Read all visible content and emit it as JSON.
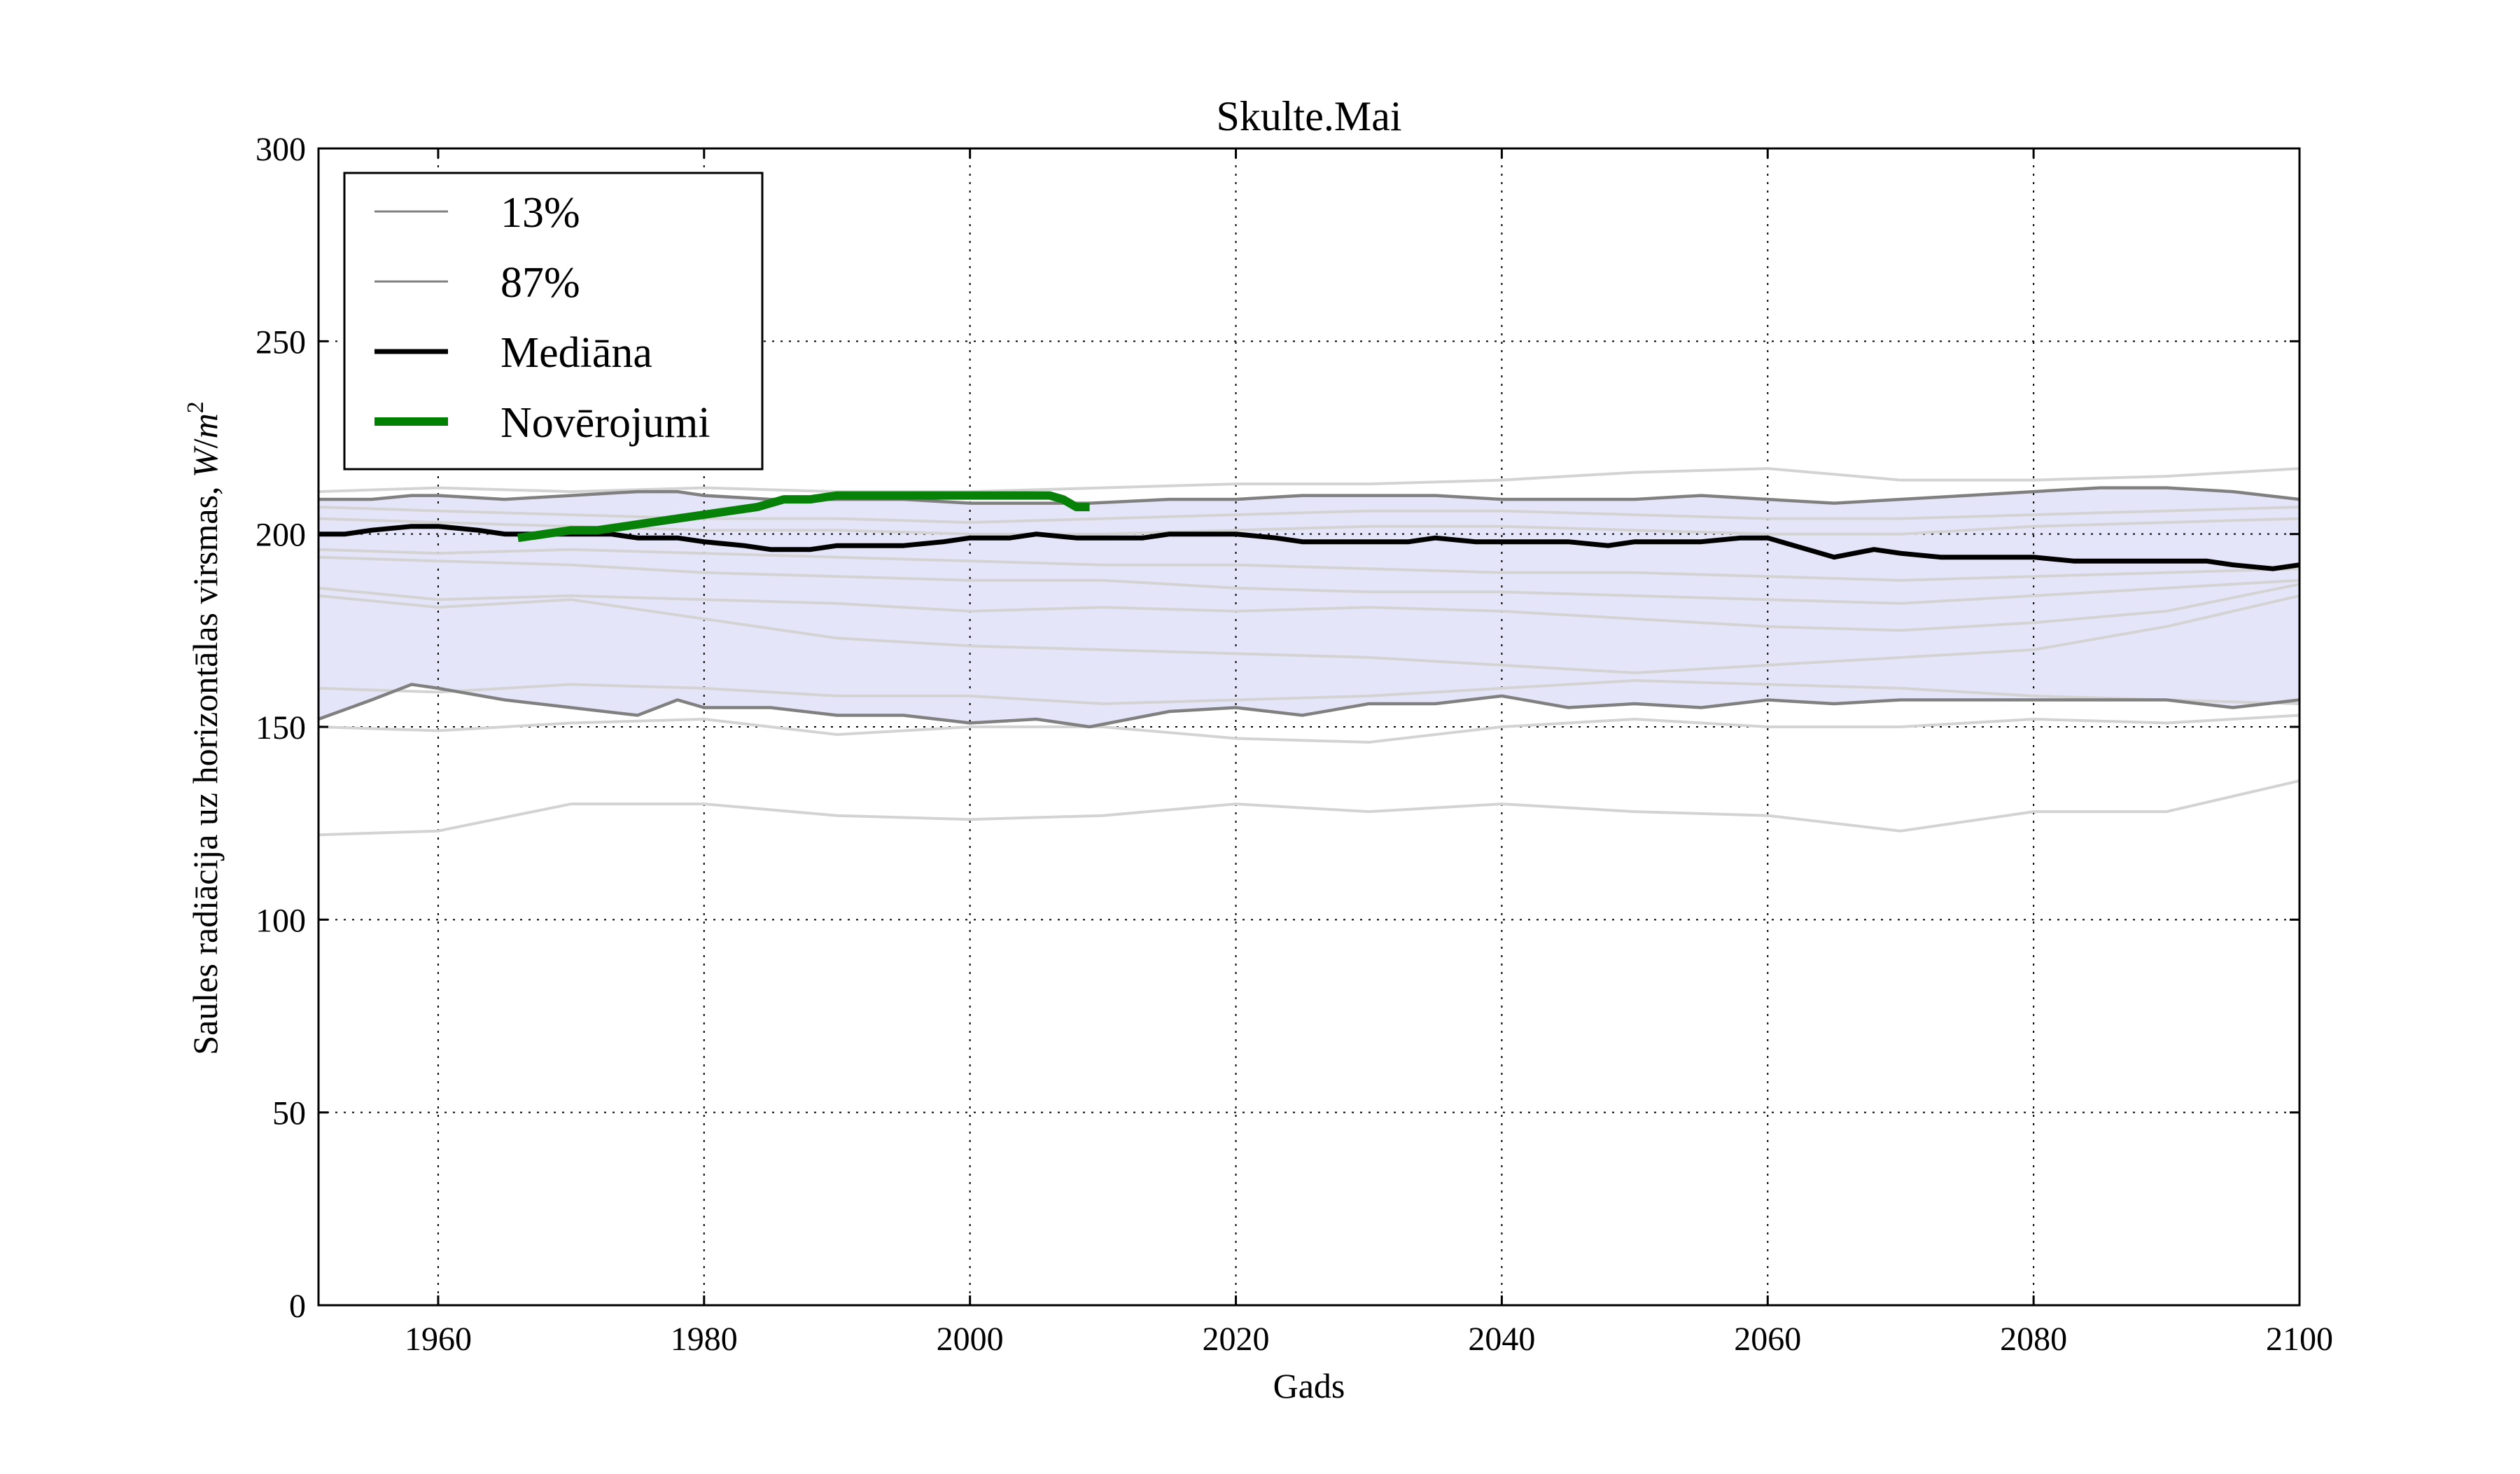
{
  "chart_data": {
    "type": "line",
    "title": "Skulte.Mai",
    "xlabel": "Gads",
    "ylabel_text": "Saules radiācija uz horizontālas virsmas, ",
    "ylabel_unit_main": "W",
    "ylabel_unit_sep": "/",
    "ylabel_unit_base": "m",
    "ylabel_unit_exp": "2",
    "xlim": [
      1951,
      2100
    ],
    "ylim": [
      0,
      300
    ],
    "xticks": [
      1960,
      1980,
      2000,
      2020,
      2040,
      2060,
      2080,
      2100
    ],
    "yticks": [
      0,
      50,
      100,
      150,
      200,
      250,
      300
    ],
    "grid": true,
    "legend_position": "upper-left",
    "legend": [
      {
        "label": "13%",
        "color": "#808080",
        "style": "thin"
      },
      {
        "label": "87%",
        "color": "#808080",
        "style": "thin"
      },
      {
        "label": "Mediāna",
        "color": "#000000",
        "style": "medium"
      },
      {
        "label": "Novērojumi",
        "color": "#008000",
        "style": "thick"
      }
    ],
    "colors": {
      "band_fill": "#e5e5fa",
      "percentile_line": "#808080",
      "ensemble_line": "#d3d3d3",
      "median_line": "#000000",
      "observation_line": "#078107",
      "grid": "#000000"
    },
    "band": {
      "name": "13%–87%",
      "x": [
        1951,
        1955,
        1958,
        1960,
        1965,
        1970,
        1975,
        1978,
        1980,
        1985,
        1990,
        1995,
        2000,
        2005,
        2009,
        2015,
        2020,
        2025,
        2030,
        2035,
        2040,
        2045,
        2050,
        2055,
        2060,
        2065,
        2070,
        2075,
        2080,
        2085,
        2090,
        2095,
        2100
      ],
      "lower": [
        152,
        157,
        161,
        160,
        157,
        155,
        153,
        157,
        155,
        155,
        153,
        153,
        151,
        152,
        150,
        154,
        155,
        153,
        156,
        156,
        158,
        155,
        156,
        155,
        157,
        156,
        157,
        157,
        157,
        157,
        157,
        155,
        157
      ],
      "upper": [
        209,
        209,
        210,
        210,
        209,
        210,
        211,
        211,
        210,
        209,
        209,
        209,
        208,
        208,
        208,
        209,
        209,
        210,
        210,
        210,
        209,
        209,
        209,
        210,
        209,
        208,
        209,
        210,
        211,
        212,
        212,
        211,
        209
      ]
    },
    "series": [
      {
        "name": "Mediāna",
        "x": [
          1951,
          1953,
          1955,
          1958,
          1960,
          1963,
          1965,
          1968,
          1970,
          1973,
          1975,
          1978,
          1980,
          1983,
          1985,
          1988,
          1990,
          1993,
          1995,
          1998,
          2000,
          2003,
          2005,
          2008,
          2010,
          2013,
          2015,
          2018,
          2020,
          2023,
          2025,
          2028,
          2030,
          2033,
          2035,
          2038,
          2040,
          2043,
          2045,
          2048,
          2050,
          2053,
          2055,
          2058,
          2060,
          2063,
          2065,
          2068,
          2070,
          2073,
          2075,
          2078,
          2080,
          2083,
          2085,
          2088,
          2090,
          2093,
          2095,
          2098,
          2100
        ],
        "values": [
          200,
          200,
          201,
          202,
          202,
          201,
          200,
          200,
          200,
          200,
          199,
          199,
          198,
          197,
          196,
          196,
          197,
          197,
          197,
          198,
          199,
          199,
          200,
          199,
          199,
          199,
          200,
          200,
          200,
          199,
          198,
          198,
          198,
          198,
          199,
          198,
          198,
          198,
          198,
          197,
          198,
          198,
          198,
          199,
          199,
          196,
          194,
          196,
          195,
          194,
          194,
          194,
          194,
          193,
          193,
          193,
          193,
          193,
          192,
          191,
          192
        ]
      },
      {
        "name": "Novērojumi",
        "x": [
          1966,
          1968,
          1970,
          1972,
          1974,
          1976,
          1978,
          1980,
          1982,
          1984,
          1986,
          1988,
          1990,
          1992,
          1994,
          1996,
          1998,
          2000,
          2002,
          2004,
          2006,
          2007,
          2008,
          2009
        ],
        "values": [
          199,
          200,
          201,
          201,
          202,
          203,
          204,
          205,
          206,
          207,
          209,
          209,
          210,
          210,
          210,
          210,
          210,
          210,
          210,
          210,
          210,
          209,
          207,
          207
        ]
      }
    ],
    "ensemble": [
      {
        "x": [
          1951,
          1960,
          1970,
          1980,
          1990,
          2000,
          2010,
          2020,
          2030,
          2040,
          2050,
          2060,
          2070,
          2080,
          2090,
          2100
        ],
        "values": [
          122,
          123,
          130,
          130,
          127,
          126,
          127,
          130,
          128,
          130,
          128,
          127,
          123,
          128,
          128,
          136
        ]
      },
      {
        "x": [
          1951,
          1960,
          1970,
          1980,
          1990,
          2000,
          2010,
          2020,
          2030,
          2040,
          2050,
          2060,
          2070,
          2080,
          2090,
          2100
        ],
        "values": [
          150,
          149,
          151,
          152,
          148,
          150,
          150,
          147,
          146,
          150,
          152,
          150,
          150,
          152,
          151,
          153
        ]
      },
      {
        "x": [
          1951,
          1960,
          1970,
          1980,
          1990,
          2000,
          2010,
          2020,
          2030,
          2040,
          2050,
          2060,
          2070,
          2080,
          2090,
          2100
        ],
        "values": [
          184,
          181,
          183,
          178,
          173,
          171,
          170,
          169,
          168,
          166,
          164,
          166,
          168,
          170,
          176,
          184
        ]
      },
      {
        "x": [
          1951,
          1960,
          1970,
          1980,
          1990,
          2000,
          2010,
          2020,
          2030,
          2040,
          2050,
          2060,
          2070,
          2080,
          2090,
          2100
        ],
        "values": [
          186,
          183,
          184,
          183,
          182,
          180,
          181,
          180,
          181,
          180,
          178,
          176,
          175,
          177,
          180,
          187
        ]
      },
      {
        "x": [
          1951,
          1960,
          1970,
          1980,
          1990,
          2000,
          2010,
          2020,
          2030,
          2040,
          2050,
          2060,
          2070,
          2080,
          2090,
          2100
        ],
        "values": [
          194,
          193,
          192,
          190,
          189,
          188,
          188,
          186,
          185,
          185,
          184,
          183,
          182,
          184,
          186,
          188
        ]
      },
      {
        "x": [
          1951,
          1960,
          1970,
          1980,
          1990,
          2000,
          2010,
          2020,
          2030,
          2040,
          2050,
          2060,
          2070,
          2080,
          2090,
          2100
        ],
        "values": [
          204,
          203,
          202,
          201,
          201,
          200,
          200,
          201,
          202,
          202,
          201,
          200,
          200,
          202,
          203,
          204
        ]
      },
      {
        "x": [
          1951,
          1960,
          1970,
          1980,
          1990,
          2000,
          2010,
          2020,
          2030,
          2040,
          2050,
          2060,
          2070,
          2080,
          2090,
          2100
        ],
        "values": [
          207,
          206,
          205,
          204,
          204,
          203,
          204,
          205,
          206,
          206,
          205,
          204,
          204,
          205,
          206,
          207
        ]
      },
      {
        "x": [
          1951,
          1960,
          1970,
          1980,
          1990,
          2000,
          2010,
          2020,
          2030,
          2040,
          2050,
          2060,
          2070,
          2080,
          2090,
          2100
        ],
        "values": [
          211,
          212,
          211,
          212,
          211,
          211,
          212,
          213,
          213,
          214,
          216,
          217,
          214,
          214,
          215,
          217
        ]
      },
      {
        "x": [
          1951,
          1960,
          1970,
          1980,
          1990,
          2000,
          2010,
          2020,
          2030,
          2040,
          2050,
          2060,
          2070,
          2080,
          2090,
          2100
        ],
        "values": [
          196,
          195,
          196,
          195,
          194,
          193,
          192,
          192,
          191,
          190,
          190,
          189,
          188,
          189,
          190,
          191
        ]
      },
      {
        "x": [
          1951,
          1960,
          1970,
          1980,
          1990,
          2000,
          2010,
          2020,
          2030,
          2040,
          2050,
          2060,
          2070,
          2080,
          2090,
          2100
        ],
        "values": [
          160,
          159,
          161,
          160,
          158,
          158,
          156,
          157,
          158,
          160,
          162,
          161,
          160,
          158,
          157,
          156
        ]
      }
    ]
  }
}
